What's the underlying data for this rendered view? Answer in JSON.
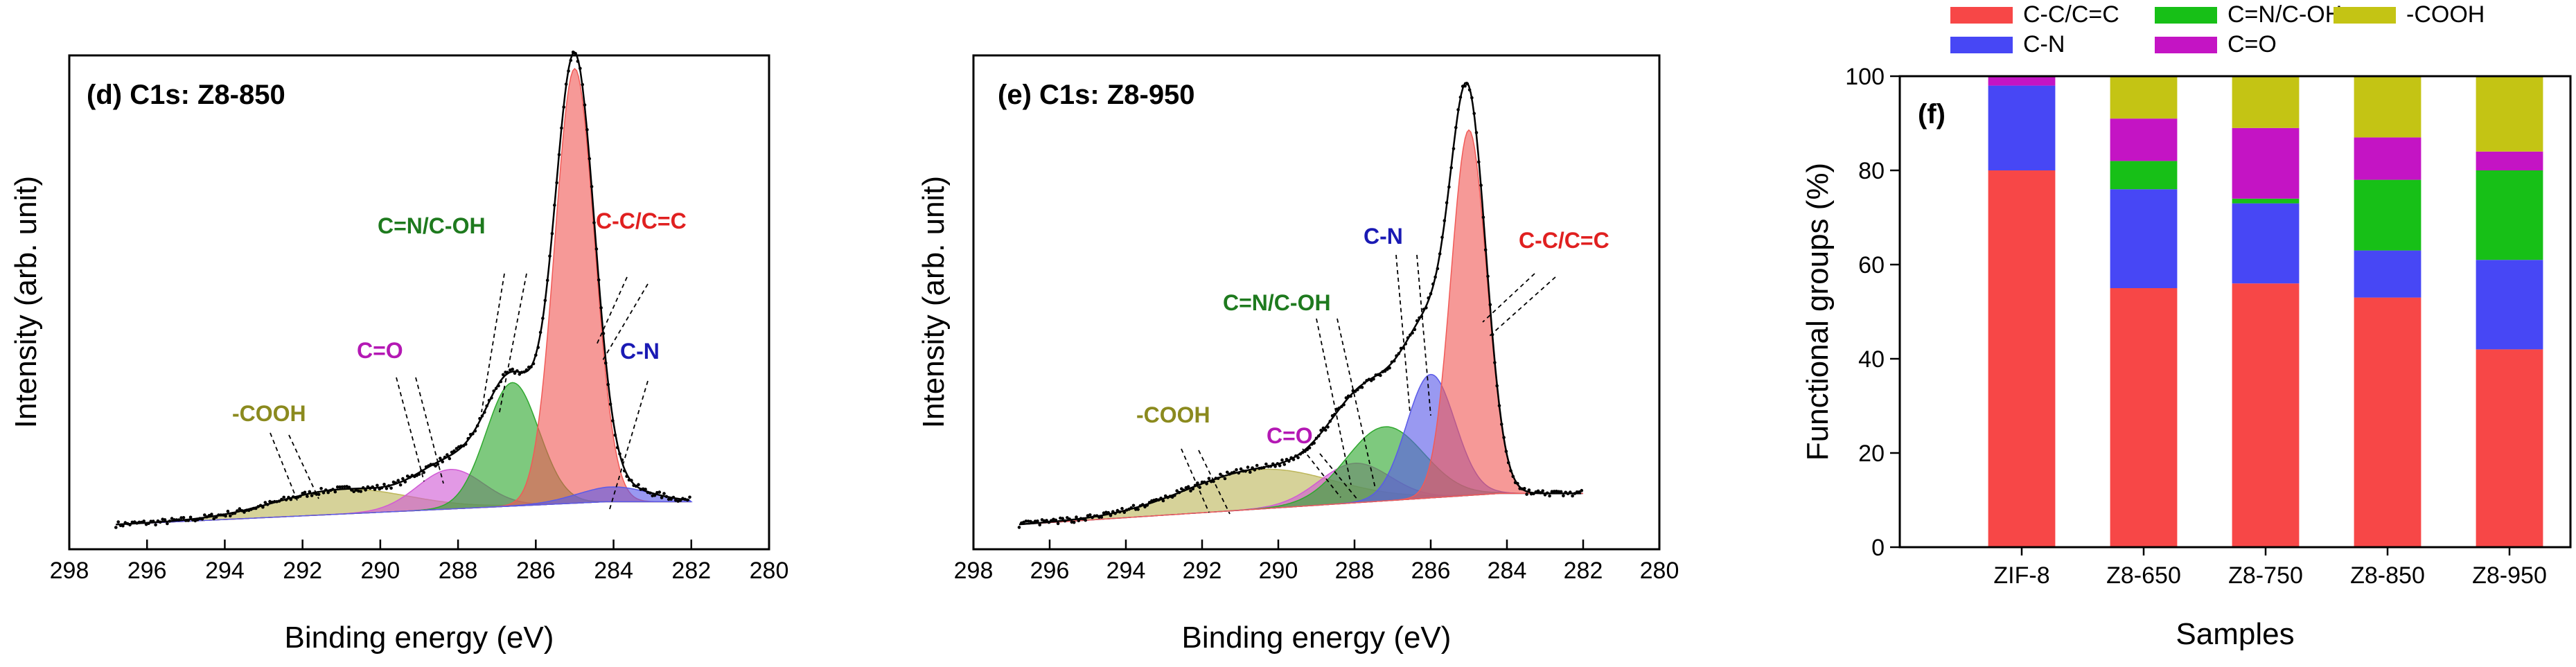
{
  "chart_data": [
    {
      "type": "line",
      "panel": "(d)",
      "title": "(d) C1s: Z8-850",
      "xlabel": "Binding energy (eV)",
      "ylabel": "Intensity (arb. unit)",
      "xlim": [
        298,
        280
      ],
      "x_ticks": [
        "298",
        "296",
        "294",
        "292",
        "290",
        "288",
        "286",
        "284",
        "282",
        "280"
      ],
      "y_ticks": [],
      "envelope": {
        "x0": 296.8,
        "x1": 282.0,
        "baseline": 0.05,
        "bg_slope": 0.011,
        "peak_x": 285.0,
        "peak_h": 0.95
      },
      "components": [
        {
          "name": "-COOH",
          "center": 291.0,
          "fwhm": 4.0,
          "height": 0.05,
          "color": "#bdb65a",
          "label": "-COOH",
          "label_color": "#8b8a1e"
        },
        {
          "name": "C=O",
          "center": 288.2,
          "fwhm": 2.0,
          "height": 0.08,
          "color": "#d15ad5",
          "label": "C=O",
          "label_color": "#b418b4"
        },
        {
          "name": "C=N/C-OH",
          "center": 286.6,
          "fwhm": 1.6,
          "height": 0.25,
          "color": "#2fa82f",
          "label": "C=N/C-OH",
          "label_color": "#1e7a1e"
        },
        {
          "name": "C-C/C=C",
          "center": 285.0,
          "fwhm": 1.2,
          "height": 0.88,
          "color": "#f15a57",
          "label": "C-C/C=C",
          "label_color": "#e02020"
        },
        {
          "name": "C-N",
          "center": 284.0,
          "fwhm": 2.2,
          "height": 0.03,
          "color": "#5a5ae8",
          "label": "C-N",
          "label_color": "#1a1ab4"
        }
      ]
    },
    {
      "type": "line",
      "panel": "(e)",
      "title": "(e) C1s: Z8-950",
      "xlabel": "Binding energy (eV)",
      "ylabel": "Intensity (arb. unit)",
      "xlim": [
        298,
        280
      ],
      "x_ticks": [
        "298",
        "296",
        "294",
        "292",
        "290",
        "288",
        "286",
        "284",
        "282",
        "280"
      ],
      "y_ticks": [],
      "envelope": {
        "x0": 296.8,
        "x1": 282.0,
        "baseline": 0.05,
        "bg_slope": 0.015,
        "peak_x": 285.0,
        "peak_h": 0.86
      },
      "components": [
        {
          "name": "-COOH",
          "center": 290.5,
          "fwhm": 4.5,
          "height": 0.08,
          "color": "#bdb65a",
          "label": "-COOH",
          "label_color": "#8b8a1e"
        },
        {
          "name": "C=O",
          "center": 288.0,
          "fwhm": 2.2,
          "height": 0.08,
          "color": "#d15ad5",
          "label": "C=O",
          "label_color": "#b418b4"
        },
        {
          "name": "C=N/C-OH",
          "center": 287.2,
          "fwhm": 2.4,
          "height": 0.15,
          "color": "#2fa82f",
          "label": "C=N/C-OH",
          "label_color": "#1e7a1e"
        },
        {
          "name": "C-N",
          "center": 286.0,
          "fwhm": 1.5,
          "height": 0.25,
          "color": "#5a5ae8",
          "label": "C-N",
          "label_color": "#1a1ab4"
        },
        {
          "name": "C-C/C=C",
          "center": 285.0,
          "fwhm": 1.1,
          "height": 0.74,
          "color": "#f15a57",
          "label": "C-C/C=C",
          "label_color": "#e02020"
        }
      ]
    },
    {
      "type": "bar",
      "stacked": true,
      "panel": "(f)",
      "title": "(f)",
      "xlabel": "Samples",
      "ylabel": "Functional groups (%)",
      "ylim": [
        0,
        100
      ],
      "y_ticks": [
        0,
        20,
        40,
        60,
        80,
        100
      ],
      "categories": [
        "ZIF-8",
        "Z8-650",
        "Z8-750",
        "Z8-850",
        "Z8-950"
      ],
      "series": [
        {
          "name": "C-C/C=C",
          "color": "#f74747",
          "values": [
            80,
            55,
            56,
            53,
            42
          ]
        },
        {
          "name": "C-N",
          "color": "#4747f5",
          "values": [
            18,
            21,
            17,
            10,
            19
          ]
        },
        {
          "name": "C=N/C-OH",
          "color": "#17c017",
          "values": [
            0,
            6,
            1,
            15,
            19
          ]
        },
        {
          "name": "C=O",
          "color": "#c414c4",
          "values": [
            2,
            9,
            15,
            9,
            4
          ]
        },
        {
          "name": "-COOH",
          "color": "#c4c414",
          "values": [
            0,
            9,
            11,
            13,
            16
          ]
        }
      ],
      "legend": [
        "C-C/C=C",
        "C=N/C-OH",
        "-COOH",
        "C-N",
        "C=O"
      ]
    }
  ]
}
